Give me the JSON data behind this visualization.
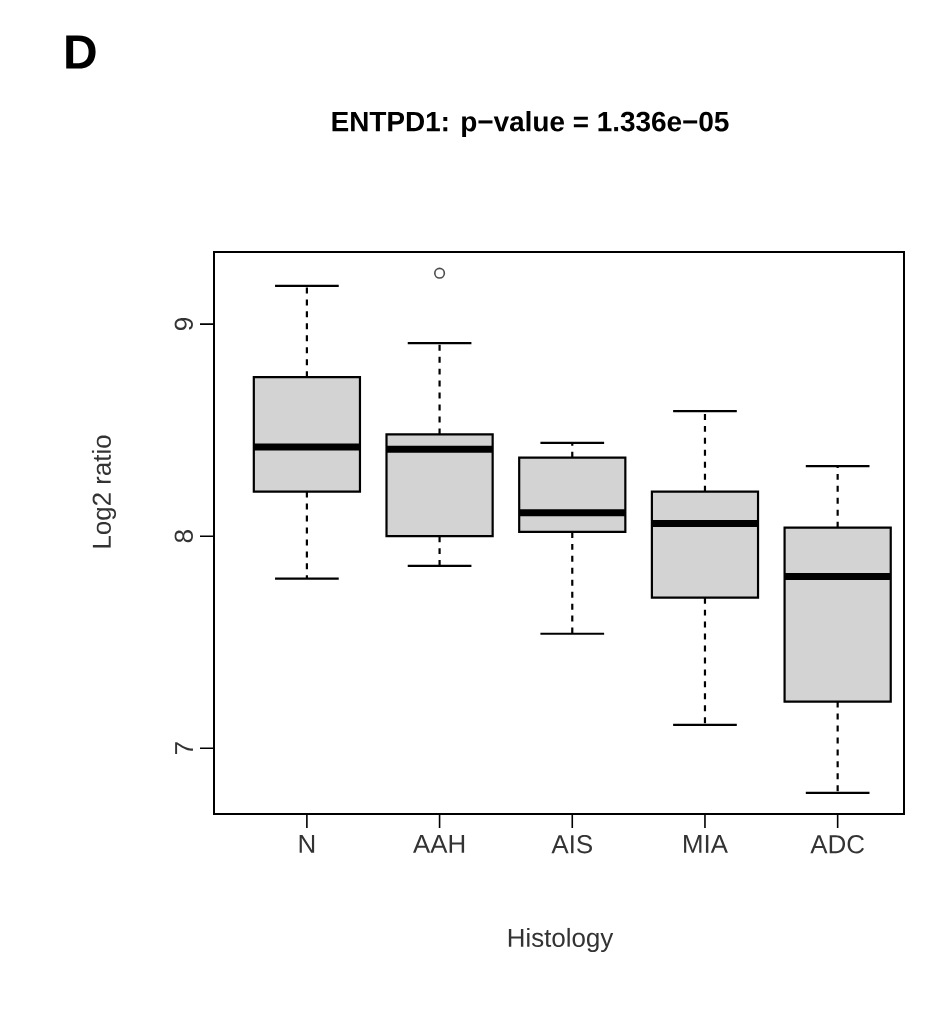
{
  "chart_data": {
    "type": "box",
    "title": "ENTPD1: p−value = 1.336e−05",
    "xlabel": "Histology",
    "ylabel": "Log2 ratio",
    "annotations": [
      "D"
    ],
    "categories": [
      "N",
      "AAH",
      "AIS",
      "MIA",
      "ADC"
    ],
    "color": "#d3d3d3",
    "boxes": [
      {
        "low": 7.8,
        "q1": 8.21,
        "median": 8.42,
        "q3": 8.75,
        "high": 9.18
      },
      {
        "low": 7.86,
        "q1": 8.0,
        "median": 8.41,
        "q3": 8.48,
        "high": 8.91,
        "outliers": [
          9.24
        ]
      },
      {
        "low": 7.54,
        "q1": 8.02,
        "median": 8.11,
        "q3": 8.37,
        "high": 8.44
      },
      {
        "low": 7.11,
        "q1": 7.71,
        "median": 8.06,
        "q3": 8.21,
        "high": 8.59
      },
      {
        "low": 6.79,
        "q1": 7.22,
        "median": 7.81,
        "q3": 8.04,
        "high": 8.33
      }
    ],
    "ylim": [
      6.69,
      9.34
    ],
    "yticks": [
      7,
      8,
      9
    ]
  }
}
